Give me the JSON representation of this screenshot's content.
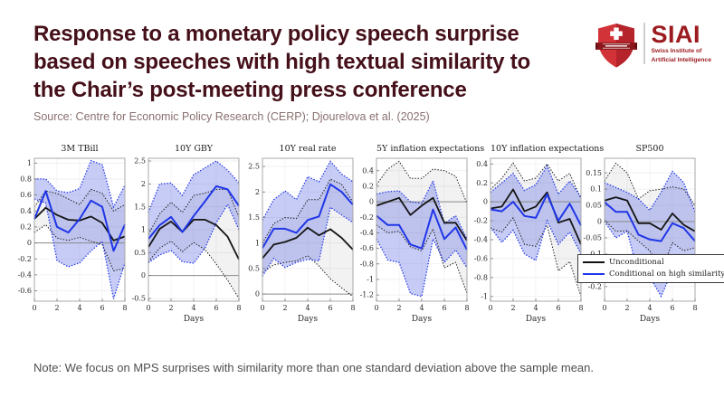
{
  "header": {
    "title_lines": [
      "Response to a monetary policy speech surprise",
      "based on speeches with high textual similarity to",
      "the Chair’s post-meeting press conference"
    ]
  },
  "logo": {
    "brand": "SIAI",
    "subtitle_lines": [
      "Swiss Institute of",
      "Artificial Intelligence"
    ]
  },
  "source": "Source: Centre for Economic Policy Research (CERP); Djourelova et al. (2025)",
  "note": "Note: We focus on MPS surprises with similarity more than one standard deviation above the sample mean.",
  "legend": [
    "Unconditional",
    "Conditional on high similarity"
  ],
  "colors": {
    "title_maroon": "#451019",
    "brand_red": "#9c1b20",
    "shield_red": "#c9292e",
    "banner_red": "#8a181c",
    "line_black": "#151515",
    "line_blue": "#2036e8",
    "band_blue": "rgba(70,85,225,0.30)",
    "band_gray": "rgba(130,130,130,0.10)",
    "zero_line": "#8a8a8a",
    "source_text": "#8a7070",
    "note_text": "#4f4f4f"
  },
  "chart_data": [
    {
      "type": "line",
      "title": "3M TBill",
      "xlabel": "",
      "x": [
        0,
        1,
        2,
        3,
        4,
        5,
        6,
        7,
        8
      ],
      "xticks": [
        0,
        2,
        4,
        6,
        8
      ],
      "yticks": [
        1,
        0.8,
        0.6,
        0.4,
        0.2,
        0,
        -0.2,
        -0.4,
        -0.6
      ],
      "ylim": [
        -0.73,
        1.06
      ],
      "unconditional": {
        "mean": [
          0.3,
          0.44,
          0.35,
          0.29,
          0.28,
          0.33,
          0.25,
          0.03,
          0.08
        ],
        "upper": [
          0.45,
          0.65,
          0.62,
          0.55,
          0.48,
          0.67,
          0.62,
          0.4,
          0.48
        ],
        "lower": [
          0.13,
          0.23,
          0.06,
          0.03,
          0.07,
          0.02,
          -0.02,
          -0.35,
          -0.32
        ]
      },
      "conditional": {
        "mean": [
          0.3,
          0.65,
          0.2,
          0.13,
          0.3,
          0.53,
          0.45,
          -0.1,
          0.23
        ],
        "upper": [
          0.8,
          0.8,
          0.65,
          0.63,
          0.68,
          1.03,
          0.98,
          0.45,
          0.72
        ],
        "lower": [
          0.55,
          0.5,
          -0.22,
          -0.3,
          -0.25,
          -0.1,
          0.02,
          -0.7,
          -0.25
        ]
      }
    },
    {
      "type": "line",
      "title": "10Y GBY",
      "xlabel": "Days",
      "x": [
        0,
        1,
        2,
        3,
        4,
        5,
        6,
        7,
        8
      ],
      "xticks": [
        0,
        2,
        4,
        6,
        8
      ],
      "yticks": [
        2.5,
        2,
        1.5,
        1,
        0.5,
        0,
        -0.5
      ],
      "ylim": [
        -0.56,
        2.56
      ],
      "unconditional": {
        "mean": [
          0.62,
          1.02,
          1.18,
          0.95,
          1.22,
          1.22,
          1.1,
          0.85,
          0.35
        ],
        "upper": [
          0.9,
          1.35,
          1.6,
          1.38,
          1.75,
          1.8,
          1.88,
          1.88,
          1.28
        ],
        "lower": [
          0.3,
          0.6,
          0.75,
          0.52,
          0.72,
          0.57,
          0.25,
          -0.1,
          -0.5
        ]
      },
      "conditional": {
        "mean": [
          0.8,
          1.1,
          1.28,
          0.95,
          1.3,
          1.62,
          1.95,
          1.88,
          1.52
        ],
        "upper": [
          1.38,
          2.0,
          2.02,
          1.75,
          2.2,
          2.35,
          2.5,
          2.3,
          2.02
        ],
        "lower": [
          0.28,
          0.45,
          0.55,
          0.3,
          0.27,
          0.6,
          1.15,
          1.55,
          1.0
        ]
      }
    },
    {
      "type": "line",
      "title": "10Y real rate",
      "xlabel": "Days",
      "x": [
        0,
        1,
        2,
        3,
        4,
        5,
        6,
        7,
        8
      ],
      "xticks": [
        0,
        2,
        4,
        6,
        8
      ],
      "yticks": [
        2.5,
        2,
        1.5,
        1,
        0.5,
        0
      ],
      "ylim": [
        -0.14,
        2.66
      ],
      "unconditional": {
        "mean": [
          0.7,
          0.97,
          1.02,
          1.1,
          1.3,
          1.15,
          1.27,
          1.1,
          0.87
        ],
        "upper": [
          1.0,
          1.38,
          1.5,
          1.48,
          1.85,
          1.85,
          2.25,
          2.15,
          1.8
        ],
        "lower": [
          0.42,
          0.57,
          0.62,
          0.65,
          0.75,
          0.55,
          0.3,
          0.12,
          -0.05
        ]
      },
      "conditional": {
        "mean": [
          0.9,
          1.28,
          1.28,
          1.2,
          1.45,
          1.52,
          2.15,
          2.0,
          1.75
        ],
        "upper": [
          1.45,
          1.85,
          2.02,
          1.85,
          2.3,
          2.2,
          2.6,
          2.35,
          2.2
        ],
        "lower": [
          0.35,
          0.7,
          0.52,
          0.62,
          0.68,
          0.65,
          1.7,
          1.55,
          1.4
        ]
      }
    },
    {
      "type": "line",
      "title": "5Y inflation expectations",
      "xlabel": "Days",
      "x": [
        0,
        1,
        2,
        3,
        4,
        5,
        6,
        7,
        8
      ],
      "xticks": [
        0,
        2,
        4,
        6,
        8
      ],
      "yticks": [
        0.4,
        0.2,
        0,
        -0.2,
        -0.4,
        -0.6,
        -0.8,
        -1,
        -1.2
      ],
      "ylim": [
        -1.28,
        0.56
      ],
      "unconditional": {
        "mean": [
          -0.05,
          0.0,
          0.05,
          -0.17,
          -0.05,
          0.05,
          -0.27,
          -0.27,
          -0.5
        ],
        "upper": [
          0.22,
          0.42,
          0.52,
          0.3,
          0.3,
          0.42,
          0.4,
          0.33,
          -0.02
        ],
        "lower": [
          -0.3,
          -0.4,
          -0.38,
          -0.58,
          -0.63,
          -0.35,
          -0.85,
          -0.78,
          -1.18
        ]
      },
      "conditional": {
        "mean": [
          -0.18,
          -0.3,
          -0.3,
          -0.55,
          -0.6,
          -0.1,
          -0.48,
          -0.33,
          -0.62
        ],
        "upper": [
          0.1,
          0.13,
          0.14,
          0.0,
          -0.02,
          0.27,
          -0.28,
          -0.18,
          -0.48
        ],
        "lower": [
          -0.48,
          -0.75,
          -0.78,
          -1.18,
          -1.22,
          -0.48,
          -0.78,
          -0.62,
          -0.85
        ]
      }
    },
    {
      "type": "line",
      "title": "10Y inflation expectations",
      "xlabel": "Days",
      "x": [
        0,
        1,
        2,
        3,
        4,
        5,
        6,
        7,
        8
      ],
      "xticks": [
        0,
        2,
        4,
        6,
        8
      ],
      "yticks": [
        0.4,
        0.2,
        0,
        -0.2,
        -0.4,
        -0.6,
        -0.8,
        -1
      ],
      "ylim": [
        -1.05,
        0.46
      ],
      "unconditional": {
        "mean": [
          -0.07,
          -0.05,
          0.13,
          -0.1,
          -0.05,
          0.1,
          -0.22,
          -0.18,
          -0.45
        ],
        "upper": [
          0.13,
          0.25,
          0.41,
          0.22,
          0.25,
          0.4,
          0.22,
          0.3,
          0.03
        ],
        "lower": [
          -0.28,
          -0.32,
          -0.17,
          -0.45,
          -0.47,
          -0.25,
          -0.73,
          -0.63,
          -1.0
        ]
      },
      "conditional": {
        "mean": [
          -0.08,
          -0.1,
          0.0,
          -0.15,
          -0.17,
          0.08,
          -0.2,
          -0.02,
          -0.25
        ],
        "upper": [
          0.1,
          0.2,
          0.3,
          0.12,
          0.18,
          0.38,
          0.08,
          0.22,
          0.05
        ],
        "lower": [
          -0.27,
          -0.43,
          -0.3,
          -0.55,
          -0.62,
          -0.2,
          -0.45,
          -0.32,
          -0.55
        ]
      }
    },
    {
      "type": "line",
      "title": "SP500",
      "xlabel": "Days",
      "x": [
        0,
        1,
        2,
        3,
        4,
        5,
        6,
        7,
        8
      ],
      "xticks": [
        0,
        2,
        4,
        6,
        8
      ],
      "yticks": [
        0.15,
        0.1,
        0.05,
        0,
        -0.05,
        -0.1,
        -0.15,
        -0.2
      ],
      "ylim": [
        -0.245,
        0.195
      ],
      "unconditional": {
        "mean": [
          0.065,
          0.075,
          0.065,
          -0.005,
          -0.005,
          -0.025,
          0.025,
          -0.01,
          -0.03
        ],
        "upper": [
          0.125,
          0.18,
          0.15,
          0.07,
          0.095,
          0.1,
          0.107,
          0.1,
          0.05
        ],
        "lower": [
          0.005,
          -0.03,
          -0.028,
          -0.06,
          -0.09,
          -0.155,
          -0.065,
          -0.09,
          -0.08
        ]
      },
      "conditional": {
        "mean": [
          0.06,
          0.03,
          0.03,
          -0.04,
          -0.055,
          -0.06,
          -0.005,
          -0.02,
          -0.06
        ],
        "upper": [
          0.12,
          0.105,
          0.09,
          0.07,
          0.035,
          0.09,
          0.155,
          0.12,
          0.03
        ],
        "lower": [
          0.0,
          -0.05,
          -0.03,
          -0.16,
          -0.17,
          -0.23,
          -0.15,
          -0.15,
          -0.15
        ]
      }
    }
  ]
}
